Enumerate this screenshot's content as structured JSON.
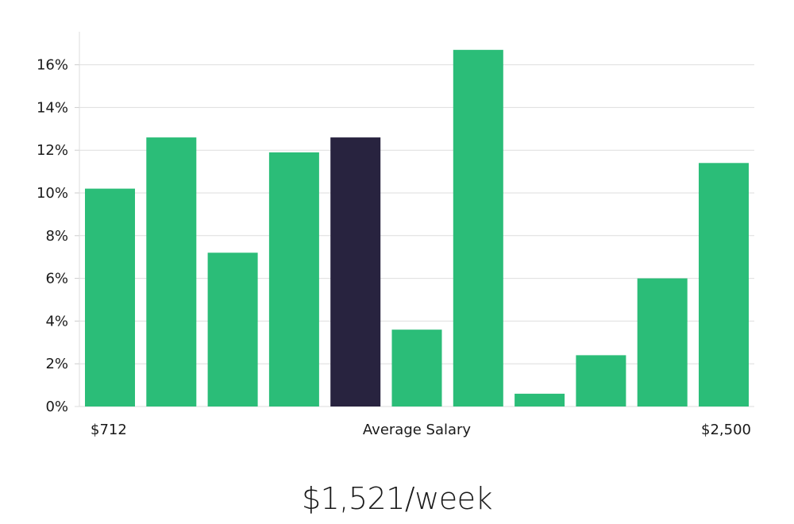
{
  "chart_data": {
    "type": "bar",
    "categories": [
      "1",
      "2",
      "3",
      "4",
      "5",
      "6",
      "7",
      "8",
      "9",
      "10",
      "11"
    ],
    "values": [
      10.2,
      12.6,
      7.2,
      11.9,
      12.6,
      3.6,
      16.7,
      0.6,
      2.4,
      6.0,
      11.4
    ],
    "highlight_index": 4,
    "colors": {
      "bar": "#2bbd78",
      "highlight": "#28233f",
      "grid": "#dedede",
      "axis": "#cccccc"
    },
    "ylim": [
      0,
      17.5
    ],
    "y_ticks": [
      0,
      2,
      4,
      6,
      8,
      10,
      12,
      14,
      16
    ],
    "y_tick_labels": [
      "0%",
      "2%",
      "4%",
      "6%",
      "8%",
      "10%",
      "12%",
      "14%",
      "16%"
    ],
    "x_labels": {
      "left": "$712",
      "center": "Average Salary",
      "right": "$2,500"
    },
    "grid": true,
    "xlabel": "",
    "ylabel": ""
  },
  "headline": "$1,521/week"
}
